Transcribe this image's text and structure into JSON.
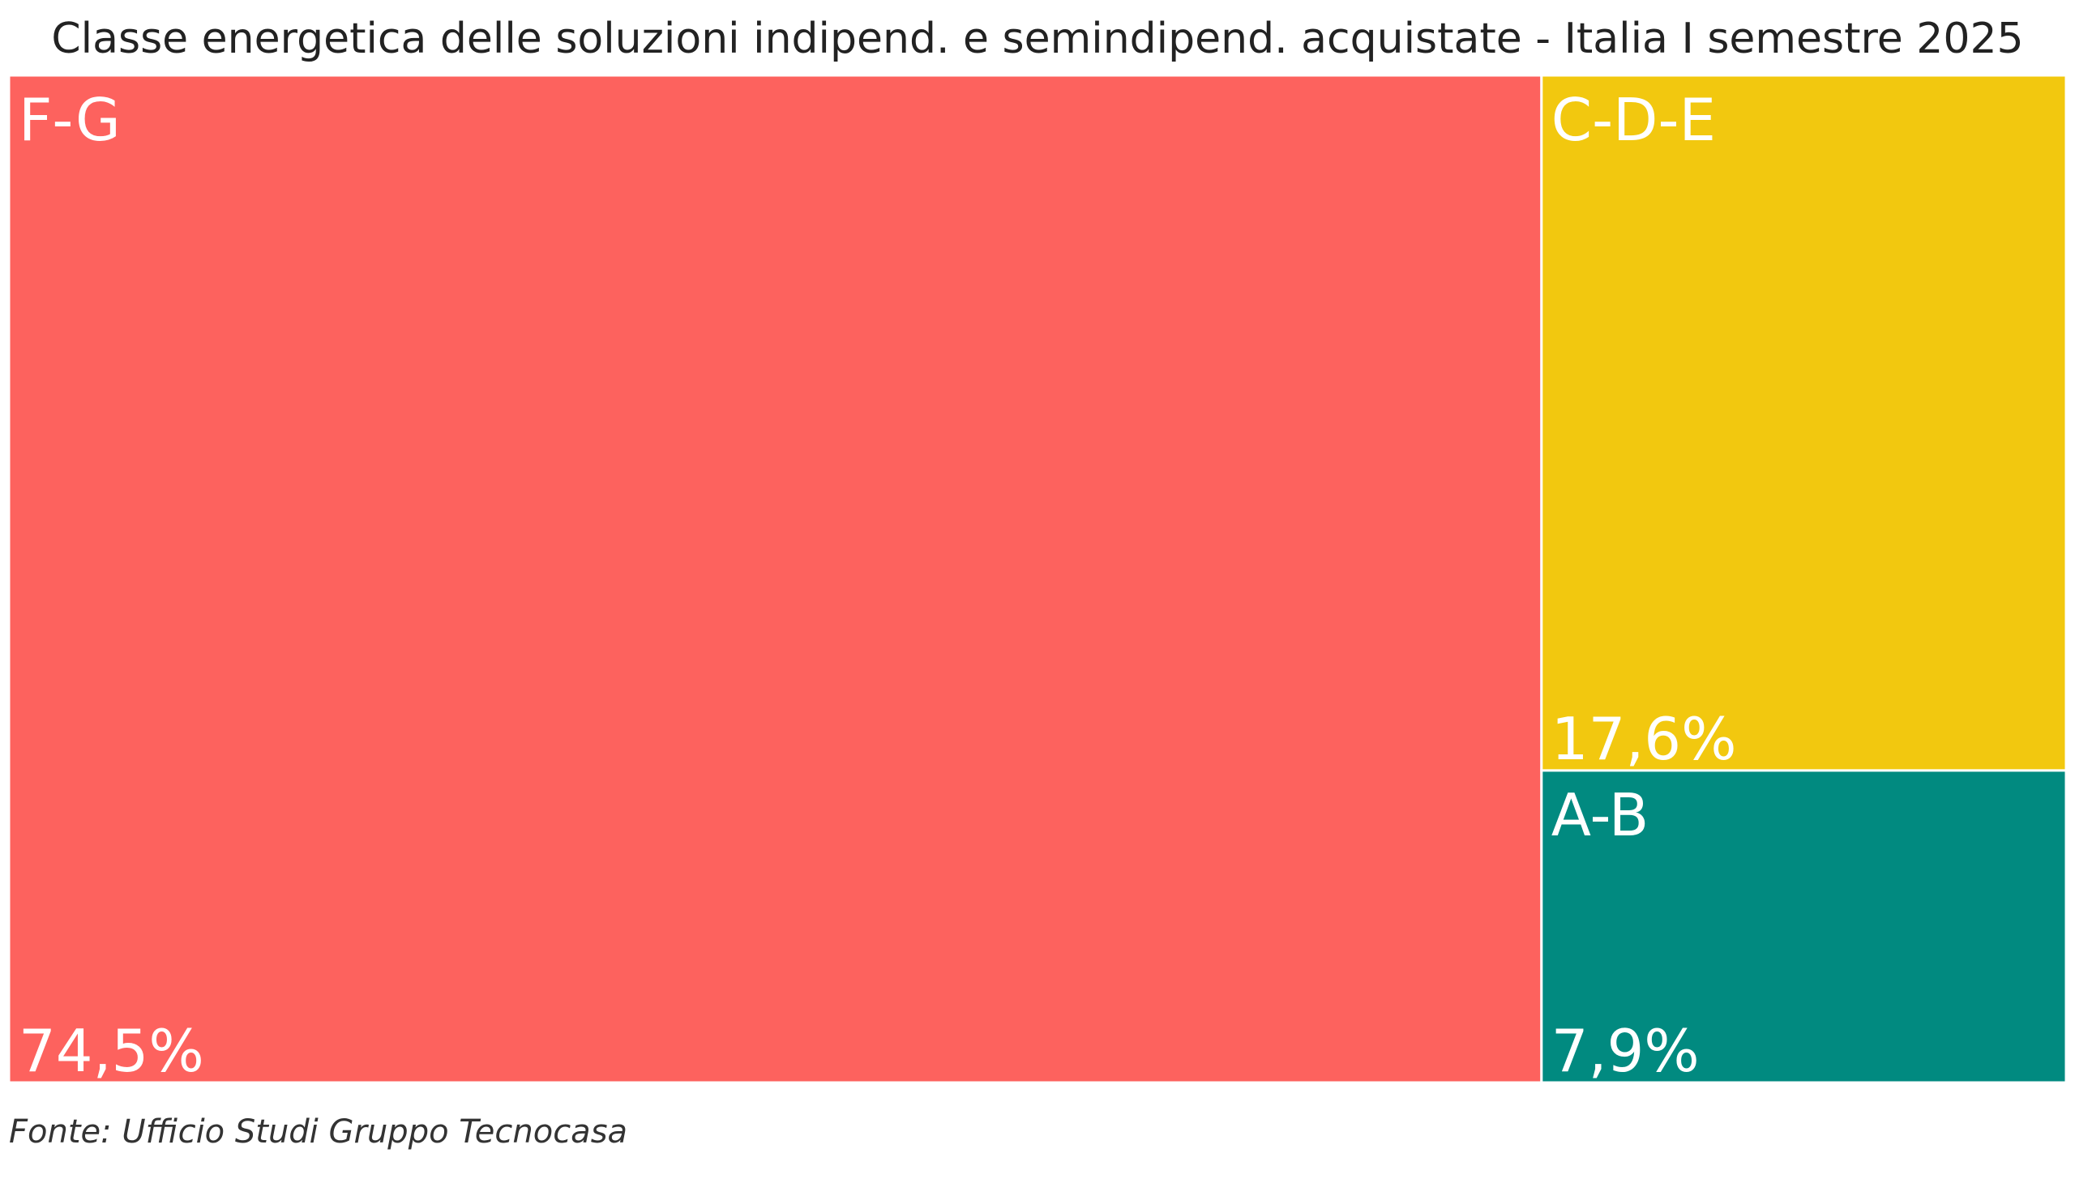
{
  "chart_data": {
    "type": "treemap",
    "title": "Classe energetica delle soluzioni indipend. e semindipend. acquistate - Italia I semestre 2025",
    "categories": [
      "F-G",
      "C-D-E",
      "A-B"
    ],
    "values": [
      74.5,
      17.6,
      7.9
    ],
    "value_labels": [
      "74,5%",
      "17,6%",
      "7,9%"
    ],
    "colors": [
      "#fd625e",
      "#f2c80f",
      "#018a80"
    ],
    "source": "Fonte: Ufficio Studi Gruppo Tecnocasa"
  }
}
